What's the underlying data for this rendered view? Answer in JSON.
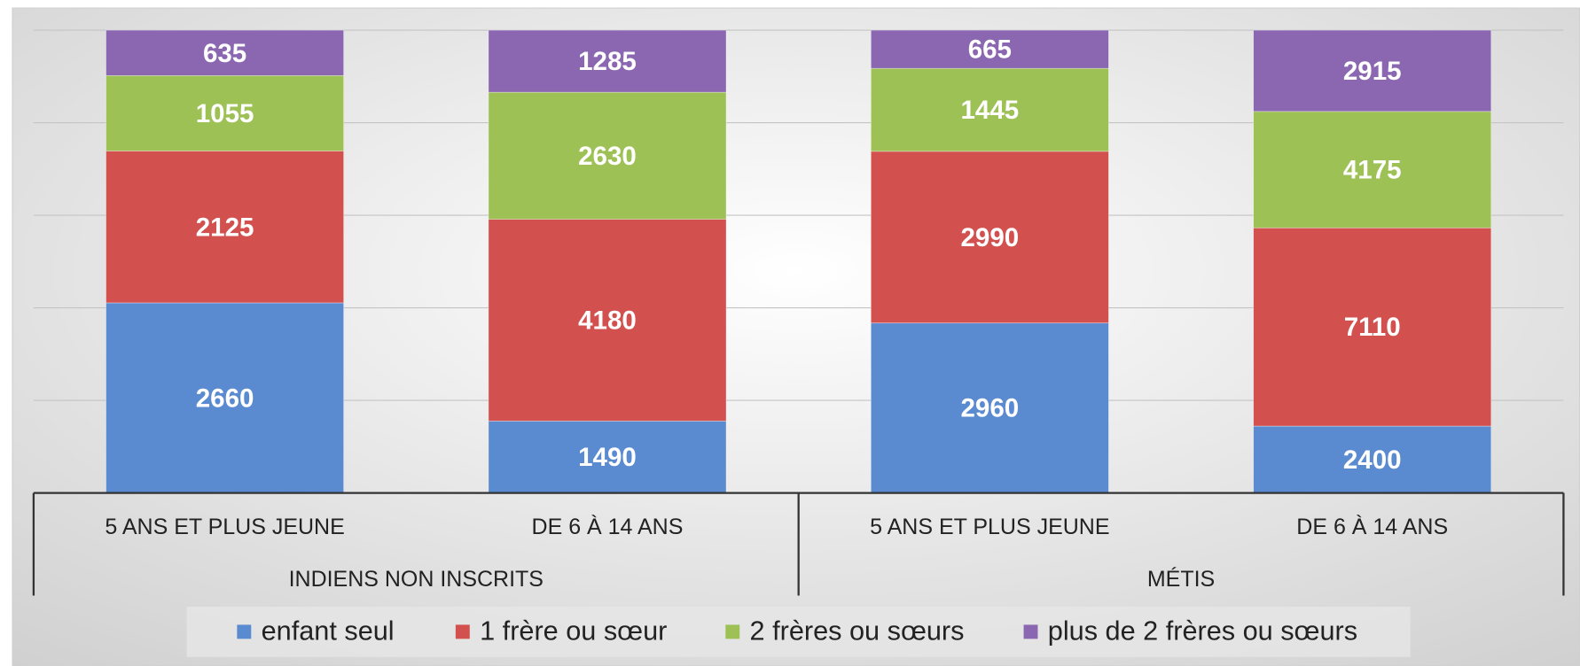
{
  "chart_data": {
    "type": "bar",
    "stacking": "percent",
    "groups": [
      {
        "name": "INDIENS NON INSCRITS",
        "categories": [
          "5 ANS ET PLUS JEUNE",
          "DE 6 À 14 ANS"
        ]
      },
      {
        "name": "MÉTIS",
        "categories": [
          "5 ANS ET PLUS JEUNE",
          "DE 6 À 14 ANS"
        ]
      }
    ],
    "series": [
      {
        "name": "enfant seul",
        "color": "#5a8ad0",
        "values": [
          2660,
          1490,
          2960,
          2400
        ]
      },
      {
        "name": "1 frère ou sœur",
        "color": "#d2504e",
        "values": [
          2125,
          4180,
          2990,
          7110
        ]
      },
      {
        "name": "2 frères ou sœurs",
        "color": "#9dc155",
        "values": [
          1055,
          2630,
          1445,
          4175
        ]
      },
      {
        "name": "plus de 2 frères ou sœurs",
        "color": "#8a67b0",
        "values": [
          635,
          1285,
          665,
          2915
        ]
      }
    ],
    "ylim": [
      0,
      100
    ],
    "yticks": [
      0,
      20,
      40,
      60,
      80,
      100
    ],
    "grid": true,
    "legend": "bottom"
  }
}
